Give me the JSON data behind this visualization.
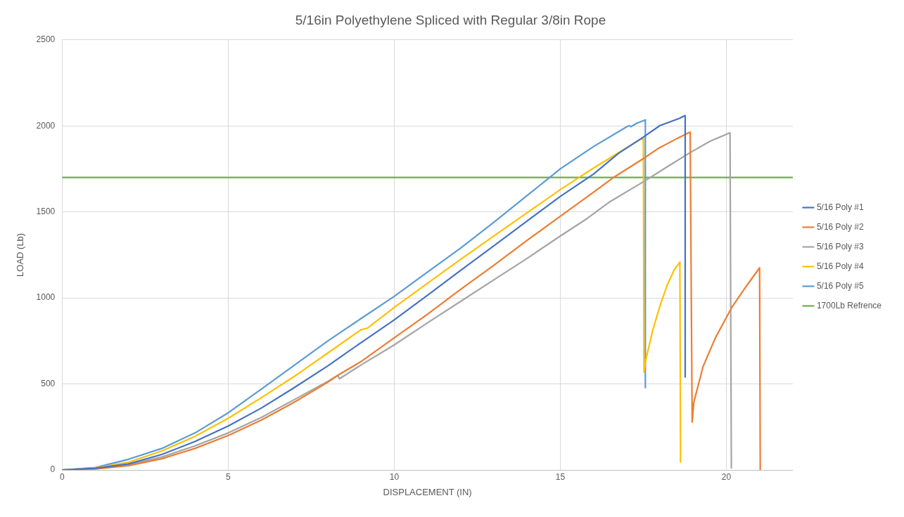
{
  "chart_data": {
    "type": "line",
    "title": "5/16in Polyethylene Spliced with Regular 3/8in Rope",
    "xlabel": "DISPLACEMENT (IN)",
    "ylabel": "LOAD (Lb)",
    "xlim": [
      0,
      22
    ],
    "xticks": [
      0,
      5,
      10,
      15,
      20
    ],
    "ylim": [
      0,
      2500
    ],
    "yticks": [
      0,
      500,
      1000,
      1500,
      2000,
      2500
    ],
    "grid": true,
    "legend": "right",
    "marker": "none",
    "line_style": "solid",
    "series": [
      {
        "name": "5/16 Poly #1",
        "color": "#4472c4",
        "x": [
          0,
          1,
          2,
          3,
          4,
          5,
          6,
          7,
          8,
          9,
          10,
          11,
          12,
          13,
          14,
          15,
          16,
          16.75,
          17.5,
          18,
          18.6,
          18.7,
          18.76,
          18.76
        ],
        "values": [
          0,
          10,
          35,
          90,
          165,
          255,
          360,
          480,
          605,
          740,
          872,
          1015,
          1160,
          1303,
          1447,
          1590,
          1720,
          1840,
          1935,
          2002,
          2045,
          2055,
          2060,
          540
        ]
      },
      {
        "name": "5/16 Poly #2",
        "color": "#ed7d31",
        "x": [
          0,
          1,
          2,
          3,
          4,
          5,
          6,
          7,
          8,
          8.3,
          9,
          10,
          11,
          12,
          13,
          14,
          15,
          16,
          16.6,
          17.5,
          17.95,
          18.5,
          18.91,
          18.97,
          19.02,
          19.3,
          19.67,
          20.17,
          20.61,
          21.0,
          21.02
        ],
        "values": [
          0,
          6,
          25,
          65,
          125,
          200,
          290,
          395,
          510,
          550,
          630,
          768,
          905,
          1050,
          1190,
          1335,
          1475,
          1615,
          1700,
          1810,
          1869,
          1925,
          1964,
          278,
          394,
          602,
          768,
          947,
          1071,
          1175,
          0
        ]
      },
      {
        "name": "5/16 Poly #3",
        "color": "#a5a5a5",
        "x": [
          0,
          1,
          2,
          3,
          4,
          5,
          6,
          7,
          8,
          8.3,
          8.35,
          9,
          10,
          11,
          12,
          13,
          14,
          15,
          15.81,
          16.5,
          17.56,
          18.2,
          18.87,
          19.5,
          20.11,
          20.15
        ],
        "values": [
          0,
          8,
          30,
          75,
          140,
          215,
          305,
          410,
          515,
          550,
          530,
          610,
          727,
          855,
          980,
          1105,
          1230,
          1360,
          1462,
          1560,
          1682,
          1760,
          1840,
          1910,
          1960,
          8
        ]
      },
      {
        "name": "5/16 Poly #4",
        "color": "#ffc000",
        "x": [
          0,
          1,
          2,
          3,
          4,
          5,
          6,
          7,
          8,
          9,
          9.1,
          9.2,
          10,
          11,
          12,
          13,
          14,
          15,
          16,
          16.8,
          17.5,
          17.52,
          17.58,
          17.78,
          17.99,
          18.21,
          18.43,
          18.6,
          18.62
        ],
        "values": [
          0,
          12,
          45,
          110,
          195,
          300,
          420,
          545,
          680,
          815,
          820,
          825,
          945,
          1085,
          1225,
          1360,
          1495,
          1630,
          1755,
          1850,
          1931,
          569,
          644,
          810,
          947,
          1071,
          1163,
          1208,
          42
        ]
      },
      {
        "name": "5/16 Poly #5",
        "color": "#5b9bd5",
        "x": [
          0,
          1,
          2,
          3,
          4,
          5,
          6,
          7,
          8,
          9,
          10,
          11,
          12,
          13,
          14,
          15,
          16,
          17,
          17.08,
          17.12,
          17.3,
          17.56,
          17.56
        ],
        "values": [
          0,
          14,
          62,
          125,
          215,
          332,
          470,
          610,
          750,
          880,
          1009,
          1150,
          1290,
          1440,
          1595,
          1750,
          1880,
          1995,
          2002,
          1995,
          2015,
          2035,
          478
        ]
      },
      {
        "name": "1700Lb Refrence",
        "color": "#70ad47",
        "type": "line",
        "x": [
          0,
          22
        ],
        "values": [
          1700,
          1700
        ]
      }
    ]
  }
}
